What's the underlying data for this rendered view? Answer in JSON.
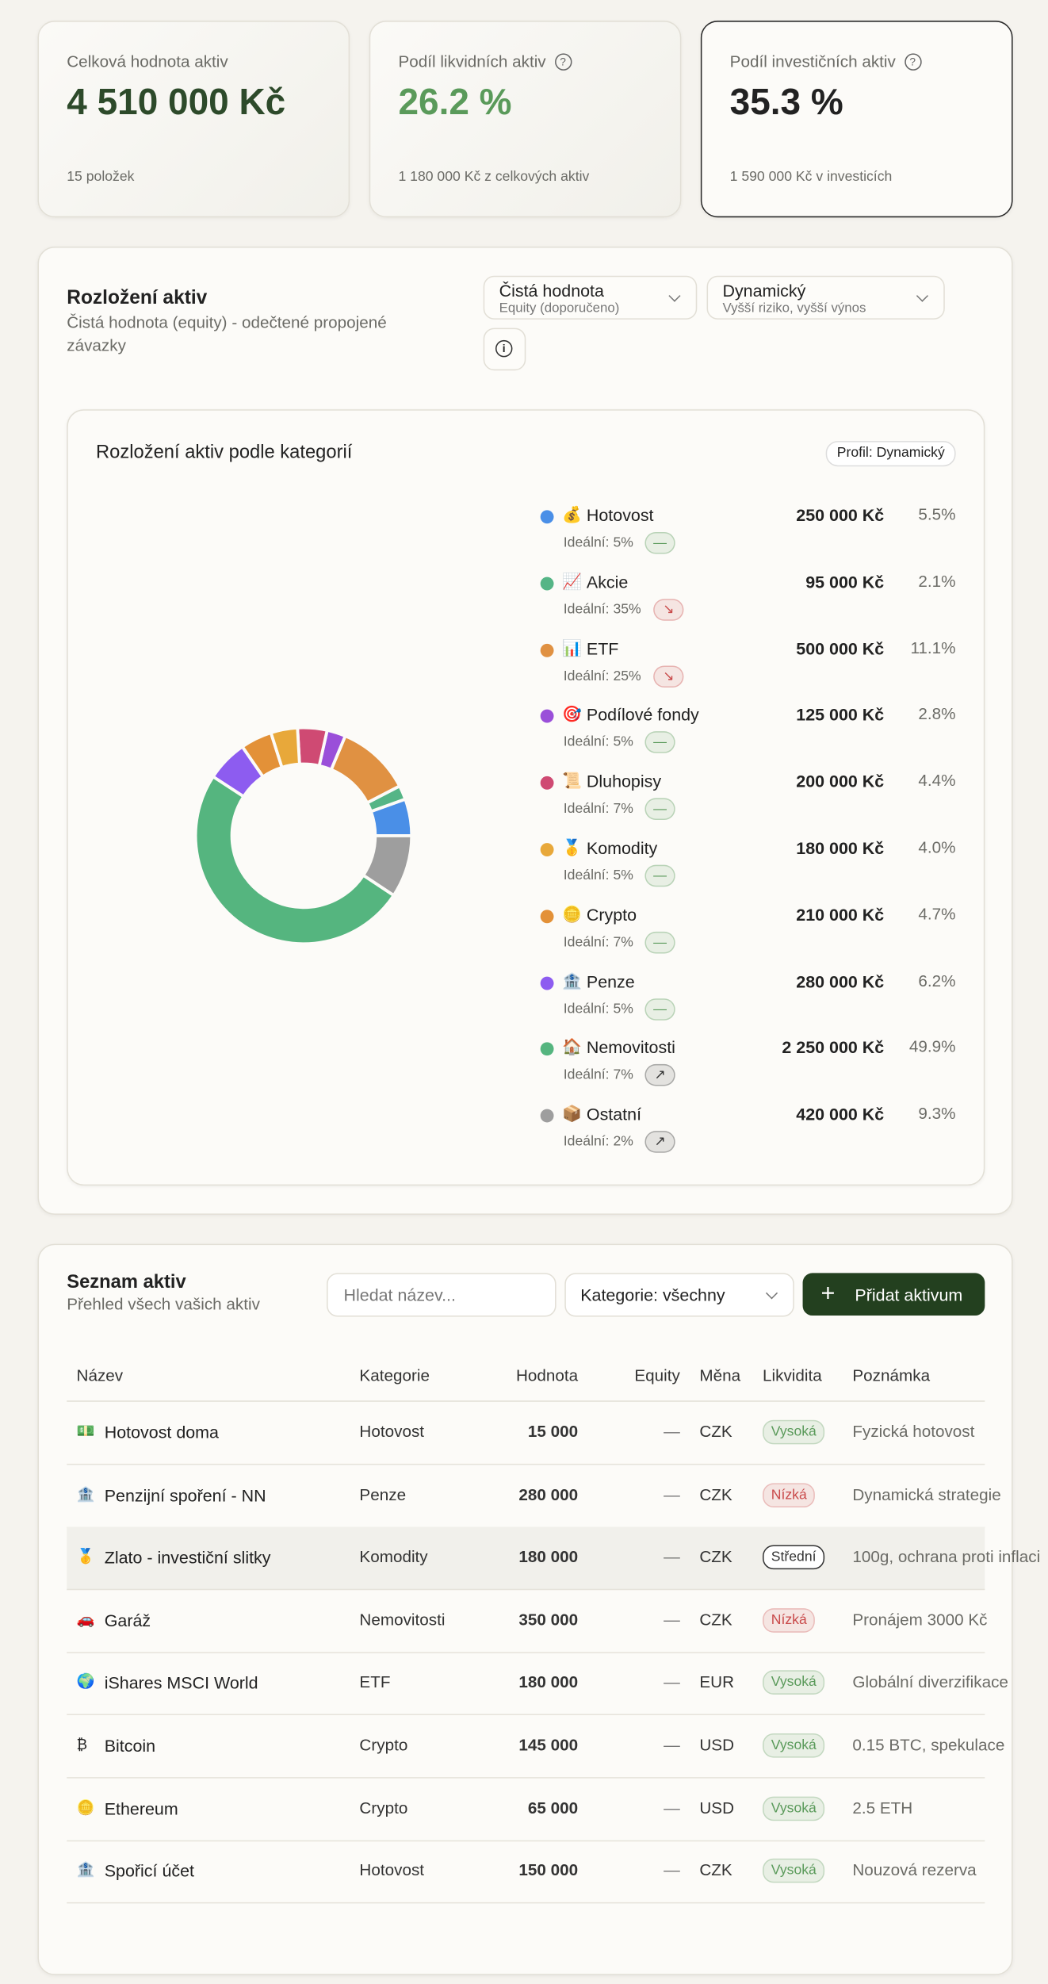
{
  "stats": [
    {
      "label": "Celková hodnota aktiv",
      "value": "4 510 000 Kč",
      "note": "15 položek",
      "color": "#2d4a2a"
    },
    {
      "label": "Podíl likvidních aktiv",
      "value": "26.2 %",
      "note": "1 180 000 Kč z celkových aktiv",
      "color": "#5a9a5a"
    },
    {
      "label": "Podíl investičních aktiv",
      "value": "35.3 %",
      "note": "1 590 000 Kč v investicích",
      "color": "#222222"
    }
  ],
  "allocation": {
    "title": "Rozložení aktiv",
    "subtitle": "Čistá hodnota (equity) - odečtené propojené závazky",
    "value_select": {
      "label": "Čistá hodnota",
      "sub": "Equity (doporučeno)"
    },
    "profile_select": {
      "label": "Dynamický",
      "sub": "Vyšší riziko, vyšší výnos"
    },
    "chart_title": "Rozložení aktiv podle kategorií",
    "profile_badge": "Profil: Dynamický",
    "items": [
      {
        "icon": "💰",
        "name": "Hotovost",
        "color": "#4a8fe7",
        "value": 250000,
        "value_label": "250 000 Kč",
        "percent": 5.5,
        "percent_label": "5.5%",
        "ideal": "Ideální: 5%",
        "trend": "—",
        "trend_color": "#5a9a5a"
      },
      {
        "icon": "📈",
        "name": "Akcie",
        "color": "#55b586",
        "value": 95000,
        "value_label": "95 000 Kč",
        "percent": 2.1,
        "percent_label": "2.1%",
        "ideal": "Ideální: 35%",
        "trend": "↘",
        "trend_color": "#c94a4a"
      },
      {
        "icon": "📊",
        "name": "ETF",
        "color": "#e09142",
        "value": 500000,
        "value_label": "500 000 Kč",
        "percent": 11.1,
        "percent_label": "11.1%",
        "ideal": "Ideální: 25%",
        "trend": "↘",
        "trend_color": "#c94a4a"
      },
      {
        "icon": "🎯",
        "name": "Podílové fondy",
        "color": "#9a4fd9",
        "value": 125000,
        "value_label": "125 000 Kč",
        "percent": 2.8,
        "percent_label": "2.8%",
        "ideal": "Ideální: 5%",
        "trend": "—",
        "trend_color": "#5a9a5a"
      },
      {
        "icon": "📜",
        "name": "Dluhopisy",
        "color": "#cf4a73",
        "value": 200000,
        "value_label": "200 000 Kč",
        "percent": 4.4,
        "percent_label": "4.4%",
        "ideal": "Ideální: 7%",
        "trend": "—",
        "trend_color": "#5a9a5a"
      },
      {
        "icon": "🥇",
        "name": "Komodity",
        "color": "#e8a83a",
        "value": 180000,
        "value_label": "180 000 Kč",
        "percent": 4.0,
        "percent_label": "4.0%",
        "ideal": "Ideální: 5%",
        "trend": "—",
        "trend_color": "#5a9a5a"
      },
      {
        "icon": "🪙",
        "name": "Crypto",
        "color": "#e39138",
        "value": 210000,
        "value_label": "210 000 Kč",
        "percent": 4.7,
        "percent_label": "4.7%",
        "ideal": "Ideální: 7%",
        "trend": "—",
        "trend_color": "#5a9a5a"
      },
      {
        "icon": "🏦",
        "name": "Penze",
        "color": "#8d5cf0",
        "value": 280000,
        "value_label": "280 000 Kč",
        "percent": 6.2,
        "percent_label": "6.2%",
        "ideal": "Ideální: 5%",
        "trend": "—",
        "trend_color": "#5a9a5a"
      },
      {
        "icon": "🏠",
        "name": "Nemovitosti",
        "color": "#55b57f",
        "value": 2250000,
        "value_label": "2 250 000 Kč",
        "percent": 49.9,
        "percent_label": "49.9%",
        "ideal": "Ideální: 7%",
        "trend": "↗",
        "trend_color": "#333333"
      },
      {
        "icon": "📦",
        "name": "Ostatní",
        "color": "#9e9e9e",
        "value": 420000,
        "value_label": "420 000 Kč",
        "percent": 9.3,
        "percent_label": "9.3%",
        "ideal": "Ideální: 2%",
        "trend": "↗",
        "trend_color": "#333333"
      }
    ]
  },
  "assets": {
    "title": "Seznam aktiv",
    "subtitle": "Přehled všech vašich aktiv",
    "search_placeholder": "Hledat název...",
    "category_select": "Kategorie: všechny",
    "add_button": "Přidat aktivum",
    "columns": [
      "Název",
      "Kategorie",
      "Hodnota",
      "Equity",
      "Měna",
      "Likvidita",
      "Poznámka"
    ],
    "rows": [
      {
        "icon": "💵",
        "name": "Hotovost doma",
        "category": "Hotovost",
        "value": "15 000",
        "equity": "—",
        "currency": "CZK",
        "liquidity": "Vysoká",
        "liquidity_color": "#5a9a5a",
        "note": "Fyzická hotovost"
      },
      {
        "icon": "🏦",
        "name": "Penzijní spoření - NN",
        "category": "Penze",
        "value": "280 000",
        "equity": "—",
        "currency": "CZK",
        "liquidity": "Nízká",
        "liquidity_color": "#c94a4a",
        "note": "Dynamická strategie"
      },
      {
        "icon": "🥇",
        "name": "Zlato - investiční slitky",
        "category": "Komodity",
        "value": "180 000",
        "equity": "—",
        "currency": "CZK",
        "liquidity": "Střední",
        "liquidity_color": "#333333",
        "note": "100g, ochrana proti inflaci"
      },
      {
        "icon": "🚗",
        "name": "Garáž",
        "category": "Nemovitosti",
        "value": "350 000",
        "equity": "—",
        "currency": "CZK",
        "liquidity": "Nízká",
        "liquidity_color": "#c94a4a",
        "note": "Pronájem 3000 Kč"
      },
      {
        "icon": "🌍",
        "name": "iShares MSCI World",
        "category": "ETF",
        "value": "180 000",
        "equity": "—",
        "currency": "EUR",
        "liquidity": "Vysoká",
        "liquidity_color": "#5a9a5a",
        "note": "Globální diverzifikace"
      },
      {
        "icon": "₿",
        "name": "Bitcoin",
        "category": "Crypto",
        "value": "145 000",
        "equity": "—",
        "currency": "USD",
        "liquidity": "Vysoká",
        "liquidity_color": "#5a9a5a",
        "note": "0.15 BTC, spekulace"
      },
      {
        "icon": "🪙",
        "name": "Ethereum",
        "category": "Crypto",
        "value": "65 000",
        "equity": "—",
        "currency": "USD",
        "liquidity": "Vysoká",
        "liquidity_color": "#5a9a5a",
        "note": "2.5 ETH"
      },
      {
        "icon": "🏦",
        "name": "Spořicí účet",
        "category": "Hotovost",
        "value": "150 000",
        "equity": "—",
        "currency": "CZK",
        "liquidity": "Vysoká",
        "liquidity_color": "#5a9a5a",
        "note": "Nouzová rezerva"
      }
    ]
  }
}
